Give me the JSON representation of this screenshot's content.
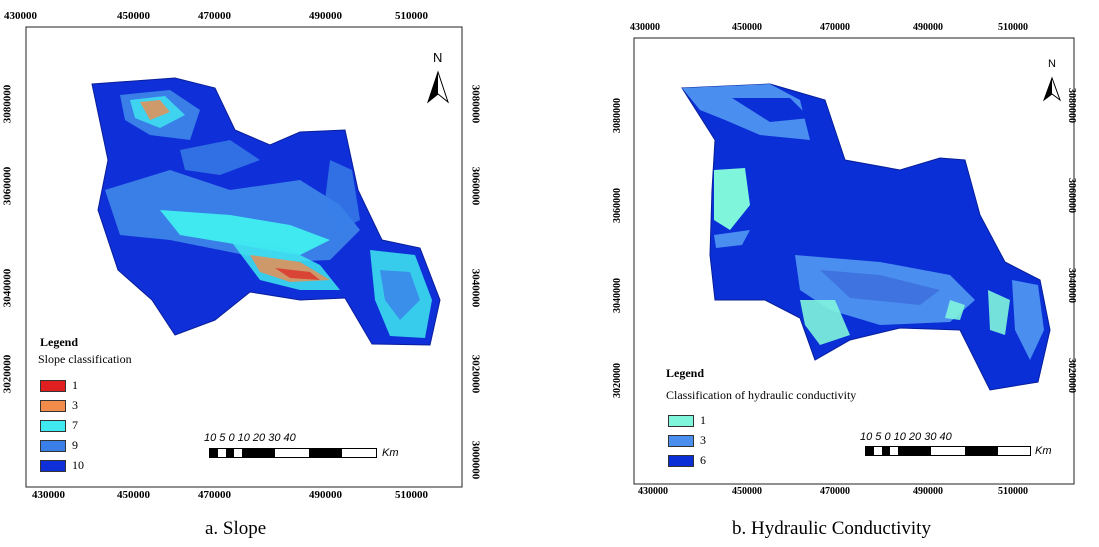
{
  "colors": {
    "class_1_slope": "#e02020",
    "class_3_slope": "#f28c4a",
    "class_7_slope": "#40e8f0",
    "class_9_slope": "#3a7fe8",
    "class_10_slope": "#0f2fd8",
    "hc_1": "#7ff5dc",
    "hc_3": "#4a8ef0",
    "hc_6": "#0a2fd6"
  },
  "panel_a": {
    "caption": "a. Slope",
    "x_ticks": [
      "430000",
      "450000",
      "470000",
      "490000",
      "510000"
    ],
    "y_ticks": [
      "3080000",
      "3060000",
      "3040000",
      "3020000",
      "3000000"
    ],
    "north": "N",
    "legend": {
      "title": "Legend",
      "subtitle": "Slope classification",
      "items": [
        {
          "label": "1",
          "color": "#e02020"
        },
        {
          "label": "3",
          "color": "#f28c4a"
        },
        {
          "label": "7",
          "color": "#40e8f0"
        },
        {
          "label": "9",
          "color": "#3a7fe8"
        },
        {
          "label": "10",
          "color": "#0f2fd8"
        }
      ]
    },
    "scale": {
      "numbers": "10  5   0        10       20       30       40",
      "unit": "Km"
    }
  },
  "panel_b": {
    "caption": "b. Hydraulic Conductivity",
    "x_ticks": [
      "430000",
      "450000",
      "470000",
      "490000",
      "510000"
    ],
    "y_ticks": [
      "3080000",
      "3060000",
      "3040000",
      "3020000"
    ],
    "north": "N",
    "legend": {
      "title": "Legend",
      "subtitle": "Classification of hydraulic conductivity",
      "items": [
        {
          "label": "1",
          "color": "#7ff5dc"
        },
        {
          "label": "3",
          "color": "#4a8ef0"
        },
        {
          "label": "6",
          "color": "#0a2fd6"
        }
      ]
    },
    "scale": {
      "numbers": "10  5   0        10       20       30       40",
      "unit": "Km"
    }
  }
}
